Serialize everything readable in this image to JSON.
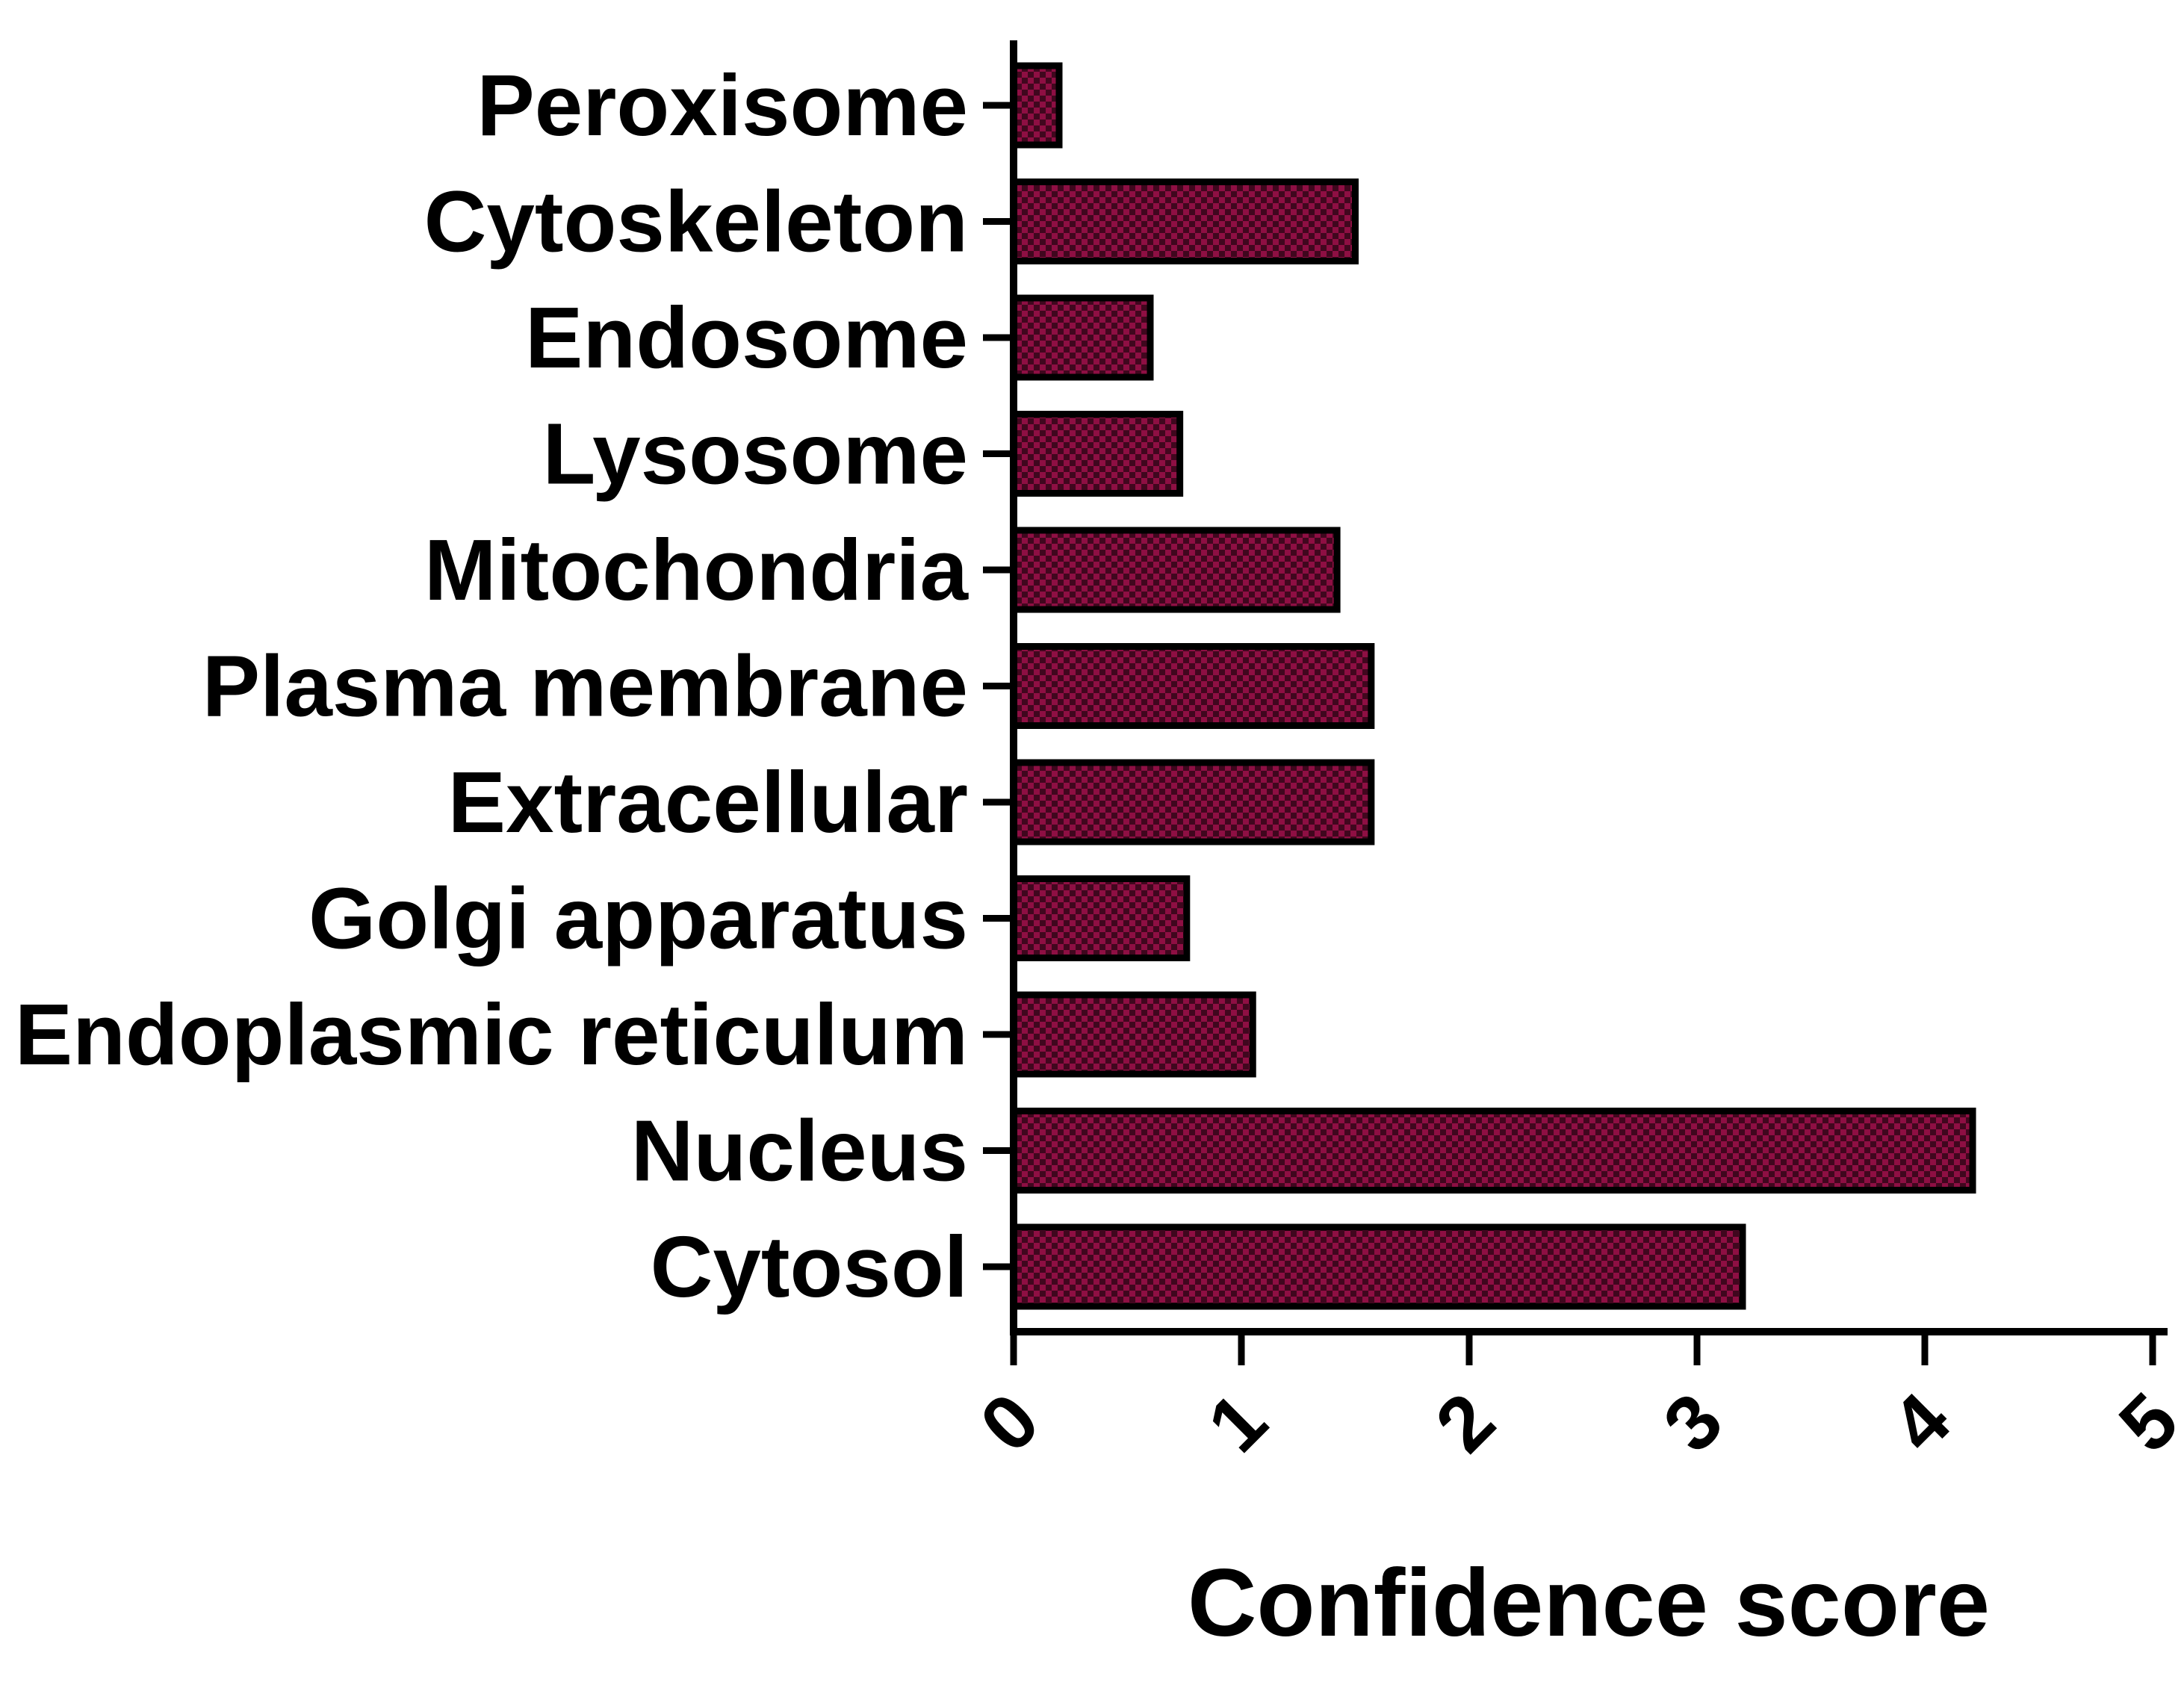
{
  "chart_data": {
    "type": "bar",
    "orientation": "horizontal",
    "title": "",
    "xlabel": "Confidence score",
    "ylabel": "",
    "xlim": [
      0,
      5
    ],
    "xticks": [
      "0",
      "1",
      "2",
      "3",
      "4",
      "5"
    ],
    "grid": false,
    "legend": "none",
    "bar_fill": "#8e0f43",
    "bar_pattern": "checkerboard",
    "bar_pattern_color": "#000000",
    "bar_stroke": "#000000",
    "categories": [
      "Peroxisome",
      "Cytoskeleton",
      "Endosome",
      "Lysosome",
      "Mitochondria",
      "Plasma membrane",
      "Extracellular",
      "Golgi apparatus",
      "Endoplasmic reticulum",
      "Nucleus",
      "Cytosol"
    ],
    "values": [
      0.2,
      1.5,
      0.6,
      0.73,
      1.42,
      1.57,
      1.57,
      0.76,
      1.05,
      4.21,
      3.2
    ]
  }
}
